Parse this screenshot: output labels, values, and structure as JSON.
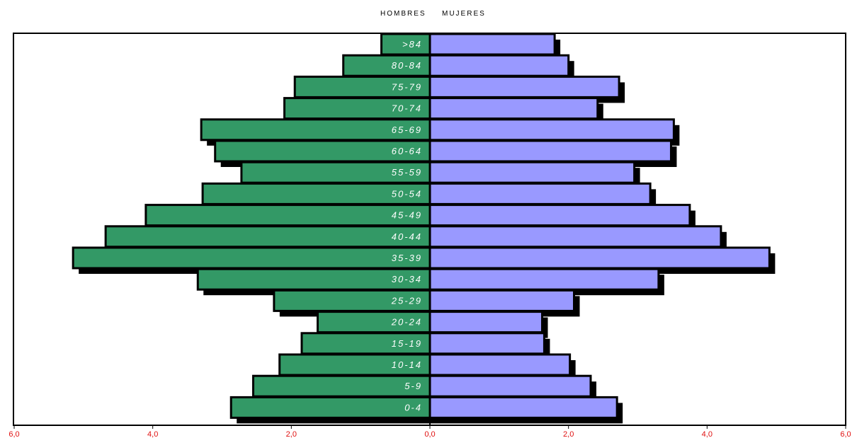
{
  "legend": {
    "left": "HOMBRES",
    "right": "MUJERES"
  },
  "chart_data": {
    "type": "bar",
    "orientation": "horizontal-population-pyramid",
    "categories": [
      ">84",
      "80-84",
      "75-79",
      "70-74",
      "65-69",
      "60-64",
      "55-59",
      "50-54",
      "45-49",
      "40-44",
      "35-39",
      "30-34",
      "25-29",
      "20-24",
      "15-19",
      "10-14",
      "5-9",
      "0-4"
    ],
    "series": [
      {
        "name": "HOMBRES",
        "color": "#339966",
        "values": [
          0.7,
          1.25,
          1.95,
          2.1,
          3.3,
          3.1,
          2.72,
          3.28,
          4.1,
          4.68,
          5.15,
          3.35,
          2.25,
          1.62,
          1.85,
          2.17,
          2.55,
          2.87
        ]
      },
      {
        "name": "MUJERES",
        "color": "#9999ff",
        "values": [
          1.8,
          2.0,
          2.73,
          2.42,
          3.52,
          3.48,
          2.95,
          3.18,
          3.75,
          4.2,
          4.9,
          3.3,
          2.08,
          1.62,
          1.65,
          2.02,
          2.32,
          2.7
        ]
      }
    ],
    "xlim": [
      -6,
      6
    ],
    "tick_labels": [
      "6,0",
      "4,0",
      "2,0",
      "0,0",
      "2,0",
      "4,0",
      "6,0"
    ],
    "tick_color": "#e01010",
    "shadow_color": "#000000"
  }
}
